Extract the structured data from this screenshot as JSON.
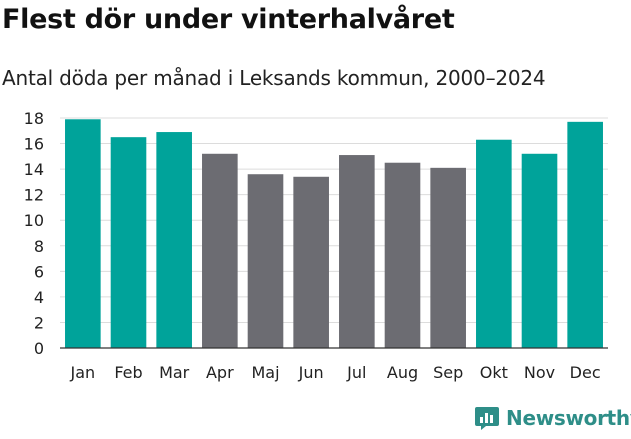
{
  "chart_data": {
    "type": "bar",
    "title": "Flest dör under vinterhalvåret",
    "subtitle": "Antal döda per månad i Leksands kommun, 2000–2024",
    "categories": [
      "Jan",
      "Feb",
      "Mar",
      "Apr",
      "Maj",
      "Jun",
      "Jul",
      "Aug",
      "Sep",
      "Okt",
      "Nov",
      "Dec"
    ],
    "values": [
      17.9,
      16.5,
      16.9,
      15.2,
      13.6,
      13.4,
      15.1,
      14.5,
      14.1,
      16.3,
      15.2,
      17.7
    ],
    "highlight": [
      true,
      true,
      true,
      false,
      false,
      false,
      false,
      false,
      false,
      true,
      true,
      true
    ],
    "ylim": [
      0,
      18
    ],
    "yticks": [
      0,
      2,
      4,
      6,
      8,
      10,
      12,
      14,
      16,
      18
    ],
    "xlabel": "",
    "ylabel": "",
    "grid": true,
    "colors": {
      "highlight": "#00a39a",
      "default": "#6c6c72"
    }
  },
  "branding": {
    "name": "Newsworthy",
    "color": "#2e8e88",
    "icon": "newsworthy-logo-icon"
  }
}
